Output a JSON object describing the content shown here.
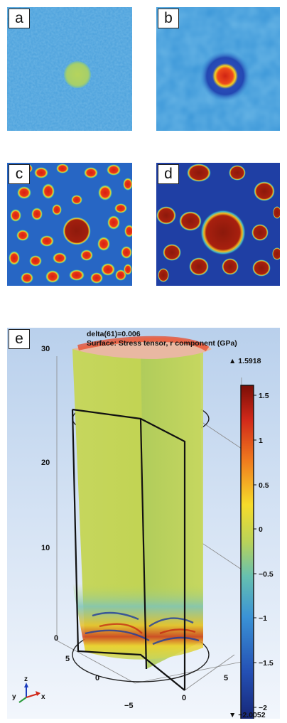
{
  "panels": {
    "a": {
      "label": "a"
    },
    "b": {
      "label": "b"
    },
    "c": {
      "label": "c"
    },
    "d": {
      "label": "d"
    },
    "e": {
      "label": "e",
      "title_line1": "delta(61)=0.006",
      "title_line2": "Surface: Stress tensor, r component (GPa)",
      "colorbar_max": "▲ 1.5918",
      "colorbar_min": "▼ −2.0052",
      "colorbar_ticks": [
        "1.5",
        "1",
        "0.5",
        "0",
        "−0.5",
        "−1",
        "−1.5",
        "−2"
      ],
      "z_ticks": [
        "30",
        "20",
        "10",
        "0"
      ],
      "y_ticks": [
        "5",
        "0",
        "−5"
      ],
      "x_ticks": [
        "5",
        "0"
      ],
      "axis_triad": {
        "z": "z",
        "y": "y",
        "x": "x"
      }
    }
  },
  "colors": {
    "field_blue": "#2f8fd4",
    "deep_blue": "#1e3c9e",
    "dark_red": "#8a1a0e",
    "yellow_green": "#b9d45a"
  }
}
